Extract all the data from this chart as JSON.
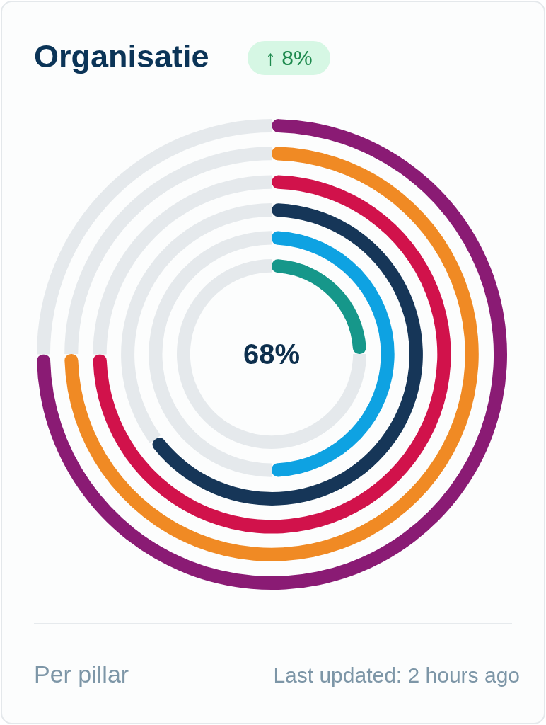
{
  "chart_data": [
    {
      "type": "donut",
      "title": "Organisatie",
      "subtitle": "↑ 8%",
      "categories": [
        null,
        null
      ],
      "values": [
        75,
        25
      ],
      "colors": [
        "#8a1b74",
        "#e5e9ec"
      ],
      "annotations": [
        "68%",
        "Per pillar",
        "Last updated: 2 hours ago"
      ]
    },
    {
      "type": "donut",
      "categories": [
        null,
        null
      ],
      "values": [
        75,
        25
      ],
      "colors": [
        "#f08a24",
        "#e5e9ec"
      ]
    },
    {
      "type": "donut",
      "categories": [
        null,
        null
      ],
      "values": [
        75,
        25
      ],
      "colors": [
        "#d1124b",
        "#e5e9ec"
      ]
    },
    {
      "type": "donut",
      "categories": [
        null,
        null
      ],
      "values": [
        65,
        35
      ],
      "colors": [
        "#163658",
        "#e5e9ec"
      ]
    },
    {
      "type": "donut",
      "categories": [
        null,
        null
      ],
      "values": [
        50,
        50
      ],
      "colors": [
        "#0ea2e2",
        "#e5e9ec"
      ]
    },
    {
      "type": "donut",
      "categories": [
        null,
        null
      ],
      "values": [
        25,
        75
      ],
      "colors": [
        "#16978a",
        "#e5e9ec"
      ]
    }
  ]
}
